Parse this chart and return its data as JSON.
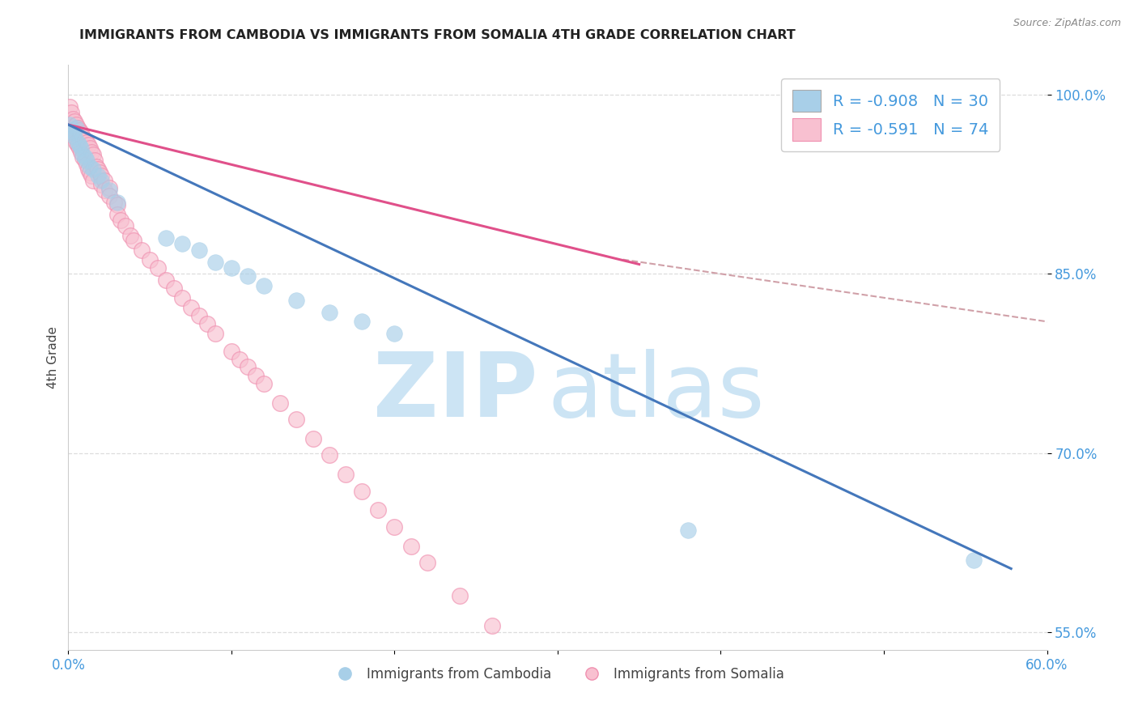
{
  "title": "IMMIGRANTS FROM CAMBODIA VS IMMIGRANTS FROM SOMALIA 4TH GRADE CORRELATION CHART",
  "source": "Source: ZipAtlas.com",
  "ylabel": "4th Grade",
  "legend_label_blue": "Immigrants from Cambodia",
  "legend_label_pink": "Immigrants from Somalia",
  "R_blue": -0.908,
  "N_blue": 30,
  "R_pink": -0.591,
  "N_pink": 74,
  "xlim": [
    0.0,
    0.6
  ],
  "ylim": [
    0.535,
    1.025
  ],
  "ytick_positions": [
    1.0,
    0.85,
    0.7,
    0.55
  ],
  "ytick_labels": [
    "100.0%",
    "85.0%",
    "70.0%",
    "55.0%"
  ],
  "color_blue": "#a8cfe8",
  "color_blue_line": "#4477bb",
  "color_pink": "#f090b0",
  "color_pink_fill": "#f8c0d0",
  "color_pink_line": "#e0508a",
  "color_dashed": "#d0a0a8",
  "watermark_color": "#cce4f4",
  "background_color": "#ffffff",
  "title_color": "#222222",
  "axis_label_color": "#444444",
  "tick_label_color": "#4499dd",
  "grid_color": "#dddddd",
  "blue_scatter_x": [
    0.001,
    0.002,
    0.003,
    0.004,
    0.005,
    0.006,
    0.007,
    0.008,
    0.009,
    0.01,
    0.011,
    0.013,
    0.015,
    0.018,
    0.02,
    0.025,
    0.03,
    0.06,
    0.07,
    0.08,
    0.09,
    0.1,
    0.11,
    0.12,
    0.14,
    0.16,
    0.18,
    0.2,
    0.38,
    0.555
  ],
  "blue_scatter_y": [
    0.975,
    0.97,
    0.968,
    0.965,
    0.972,
    0.96,
    0.958,
    0.955,
    0.95,
    0.948,
    0.945,
    0.94,
    0.938,
    0.932,
    0.928,
    0.92,
    0.91,
    0.88,
    0.875,
    0.87,
    0.86,
    0.855,
    0.848,
    0.84,
    0.828,
    0.818,
    0.81,
    0.8,
    0.635,
    0.61
  ],
  "pink_scatter_x": [
    0.001,
    0.001,
    0.002,
    0.002,
    0.003,
    0.003,
    0.004,
    0.004,
    0.005,
    0.005,
    0.006,
    0.006,
    0.007,
    0.007,
    0.008,
    0.008,
    0.009,
    0.009,
    0.01,
    0.01,
    0.011,
    0.011,
    0.012,
    0.012,
    0.013,
    0.013,
    0.014,
    0.014,
    0.015,
    0.015,
    0.016,
    0.017,
    0.018,
    0.019,
    0.02,
    0.02,
    0.022,
    0.022,
    0.025,
    0.025,
    0.028,
    0.03,
    0.03,
    0.032,
    0.035,
    0.038,
    0.04,
    0.045,
    0.05,
    0.055,
    0.06,
    0.065,
    0.07,
    0.075,
    0.08,
    0.085,
    0.09,
    0.1,
    0.105,
    0.11,
    0.115,
    0.12,
    0.13,
    0.14,
    0.15,
    0.16,
    0.17,
    0.18,
    0.19,
    0.2,
    0.21,
    0.22,
    0.24,
    0.26
  ],
  "pink_scatter_y": [
    0.99,
    0.978,
    0.985,
    0.972,
    0.98,
    0.968,
    0.978,
    0.965,
    0.975,
    0.96,
    0.972,
    0.958,
    0.97,
    0.955,
    0.968,
    0.952,
    0.965,
    0.948,
    0.962,
    0.945,
    0.96,
    0.942,
    0.958,
    0.938,
    0.955,
    0.935,
    0.952,
    0.932,
    0.95,
    0.928,
    0.945,
    0.94,
    0.938,
    0.935,
    0.932,
    0.925,
    0.928,
    0.92,
    0.922,
    0.915,
    0.91,
    0.908,
    0.9,
    0.895,
    0.89,
    0.882,
    0.878,
    0.87,
    0.862,
    0.855,
    0.845,
    0.838,
    0.83,
    0.822,
    0.815,
    0.808,
    0.8,
    0.785,
    0.778,
    0.772,
    0.765,
    0.758,
    0.742,
    0.728,
    0.712,
    0.698,
    0.682,
    0.668,
    0.652,
    0.638,
    0.622,
    0.608,
    0.58,
    0.555
  ],
  "blue_line_x": [
    0.0,
    0.578
  ],
  "blue_line_y": [
    0.975,
    0.603
  ],
  "pink_line_x": [
    0.0,
    0.35
  ],
  "pink_line_y": [
    0.975,
    0.858
  ],
  "dashed_line_x": [
    0.34,
    1.1
  ],
  "dashed_line_y": [
    0.862,
    0.71
  ]
}
